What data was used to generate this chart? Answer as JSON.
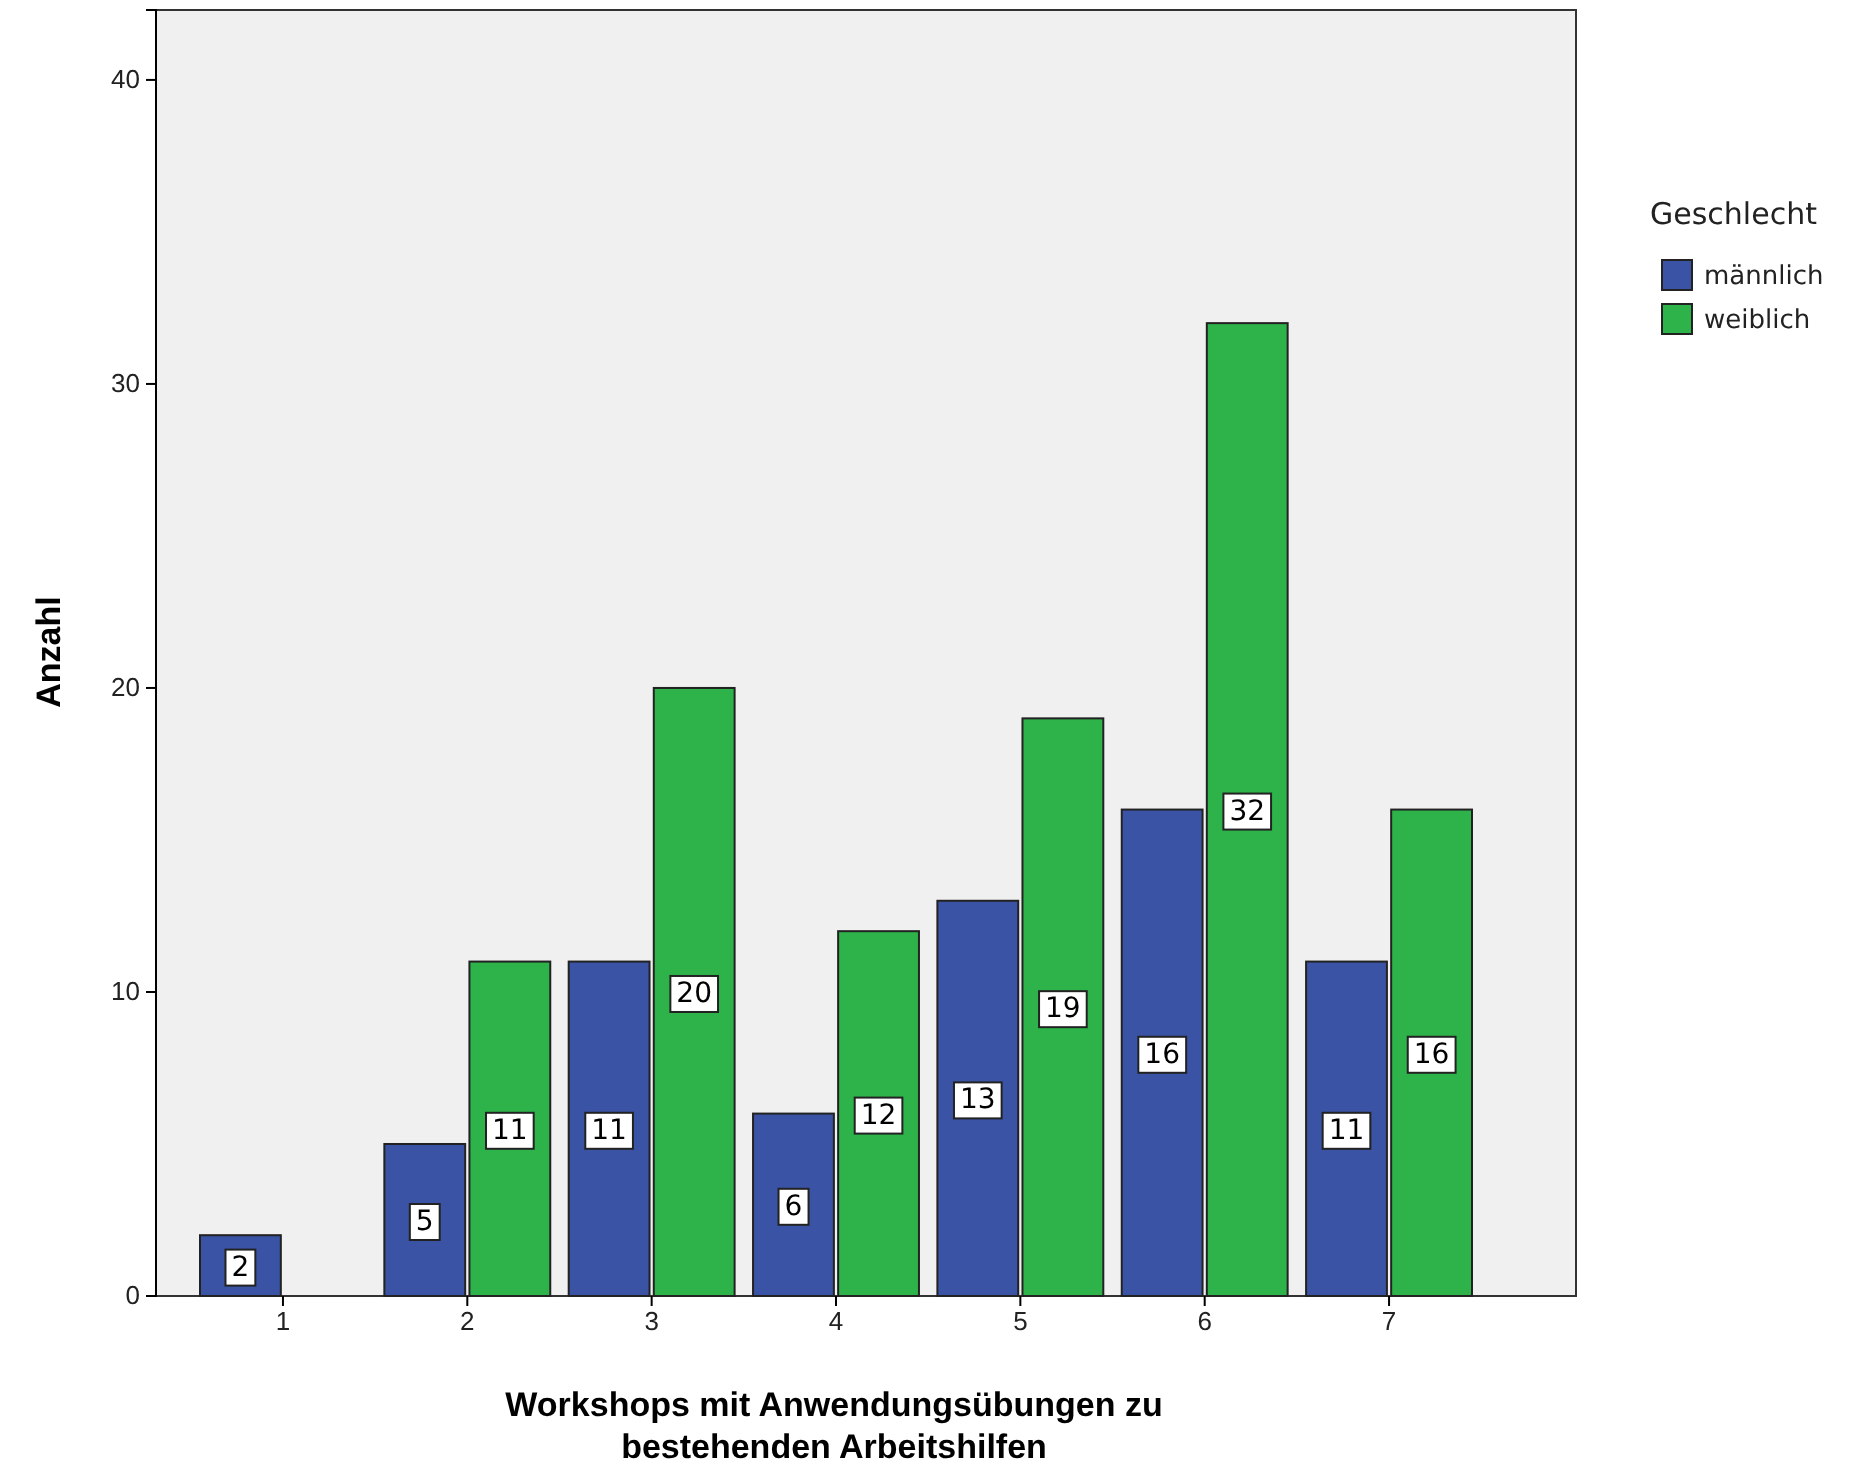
{
  "chart_data": {
    "type": "bar",
    "xlabel": "Workshops mit Anwendungsübungen zu bestehenden Arbeitshilfen",
    "ylabel": "Anzahl",
    "legend_title": "Geschlecht",
    "legend": "top right",
    "categories": [
      "1",
      "2",
      "3",
      "4",
      "5",
      "6",
      "7"
    ],
    "series": [
      {
        "name": "männlich",
        "color": "#3a53a4",
        "values": [
          2,
          5,
          11,
          6,
          13,
          16,
          11
        ]
      },
      {
        "name": "weiblich",
        "color": "#2db34a",
        "values": [
          null,
          11,
          20,
          12,
          19,
          32,
          16
        ]
      }
    ],
    "ylim": [
      0,
      42.3
    ],
    "yticks": [
      0,
      10,
      20,
      30,
      40
    ],
    "data_labels": true
  }
}
